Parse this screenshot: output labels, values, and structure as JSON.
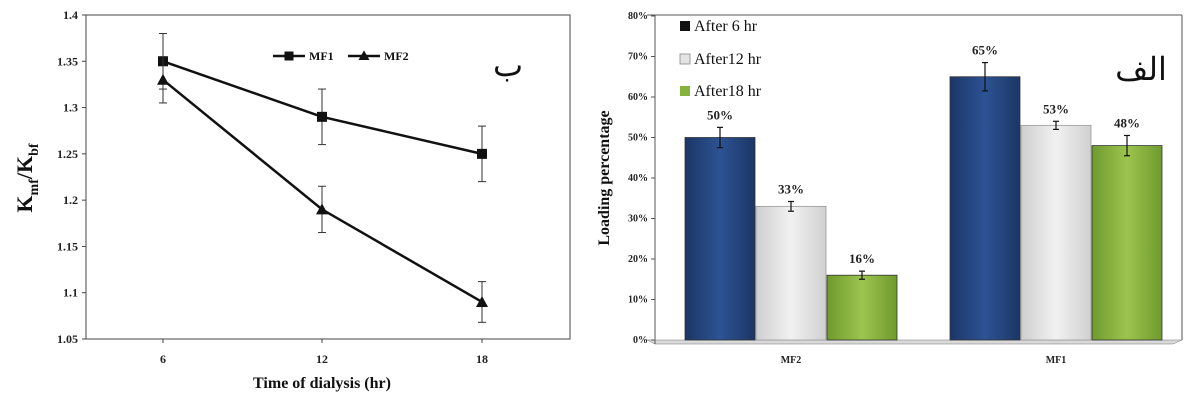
{
  "chart_data": [
    {
      "type": "line",
      "panel_label": "ب",
      "xlabel": "Time of dialysis (hr)",
      "ylabel_main": "K",
      "ylabel_sub1": "mf",
      "ylabel_sep": "/K",
      "ylabel_sub2": "bf",
      "categories": [
        "6",
        "12",
        "18"
      ],
      "ylim": [
        1.05,
        1.4
      ],
      "yticks": [
        "1.05",
        "1.1",
        "1.15",
        "1.2",
        "1.25",
        "1.3",
        "1.35",
        "1.4"
      ],
      "legend_position": "top-center",
      "grid": false,
      "series": [
        {
          "name": "MF1",
          "marker": "square",
          "values": [
            1.35,
            1.29,
            1.25
          ],
          "errors": [
            0.03,
            0.03,
            0.03
          ]
        },
        {
          "name": "MF2",
          "marker": "triangle",
          "values": [
            1.33,
            1.19,
            1.09
          ],
          "errors": [
            0.025,
            0.025,
            0.022
          ]
        }
      ]
    },
    {
      "type": "bar",
      "panel_label": "الف",
      "ylabel": "Loading percentage",
      "categories": [
        "MF2",
        "MF1"
      ],
      "ylim": [
        0,
        80
      ],
      "yticks": [
        "0%",
        "10%",
        "20%",
        "30%",
        "40%",
        "50%",
        "60%",
        "70%",
        "80%"
      ],
      "legend_position": "top-left",
      "grid": false,
      "series": [
        {
          "name": "After 6 hr",
          "color": "#24467f",
          "values": [
            50,
            65
          ],
          "labels": [
            "50%",
            "65%"
          ],
          "errors": [
            2.5,
            3.5
          ]
        },
        {
          "name": "After12 hr",
          "color": "#e4e4e4",
          "values": [
            33,
            53
          ],
          "labels": [
            "33%",
            "53%"
          ],
          "errors": [
            1.2,
            1.0
          ]
        },
        {
          "name": "After18 hr",
          "color": "#86b33e",
          "values": [
            16,
            48
          ],
          "labels": [
            "16%",
            "48%"
          ],
          "errors": [
            1.0,
            2.5
          ]
        }
      ]
    }
  ]
}
